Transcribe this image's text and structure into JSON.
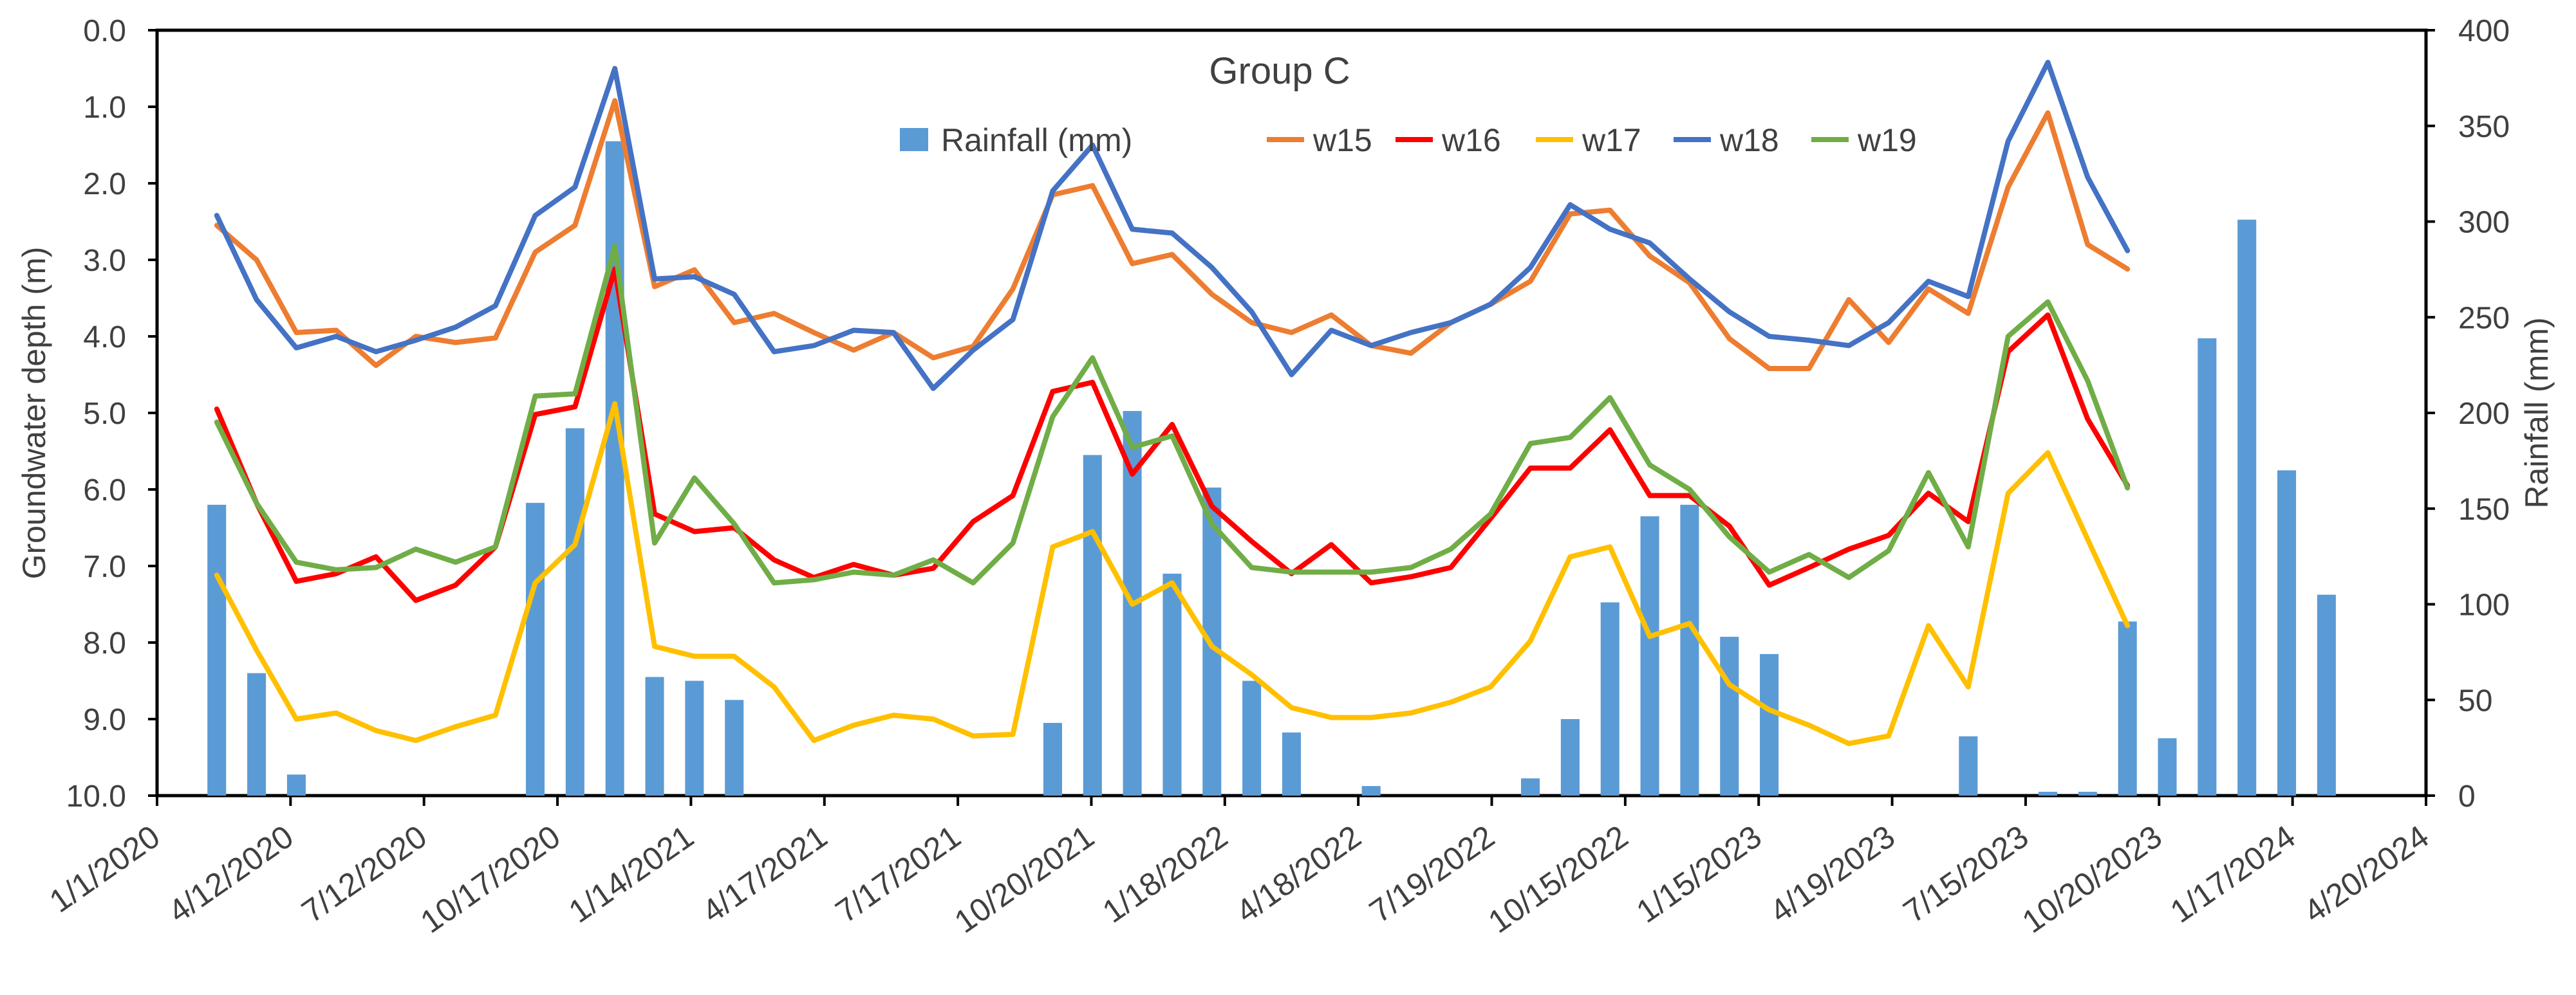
{
  "chart_data": {
    "type": "line",
    "title": "Group C",
    "ylabel_left": "Groundwater depth (m)",
    "ylabel_right": "Rainfall (mm)",
    "xlabel": "",
    "ylim_left": [
      10.0,
      0.0
    ],
    "ylim_right": [
      0,
      400
    ],
    "y_ticks_left": [
      "0.0",
      "1.0",
      "2.0",
      "3.0",
      "4.0",
      "5.0",
      "6.0",
      "7.0",
      "8.0",
      "9.0",
      "10.0"
    ],
    "y_ticks_right": [
      "0",
      "50",
      "100",
      "150",
      "200",
      "250",
      "300",
      "350",
      "400"
    ],
    "x_ticks": [
      "1/1/2020",
      "4/12/2020",
      "7/12/2020",
      "10/17/2020",
      "1/14/2021",
      "4/17/2021",
      "7/17/2021",
      "10/20/2021",
      "1/18/2022",
      "4/18/2022",
      "7/19/2022",
      "10/15/2022",
      "1/15/2023",
      "4/19/2023",
      "7/15/2023",
      "10/20/2023",
      "1/17/2024",
      "4/20/2024"
    ],
    "legend": [
      "Rainfall (mm)",
      "w15",
      "w16",
      "w17",
      "w18",
      "w19"
    ],
    "colors": {
      "rainfall": "#5B9BD5",
      "w15": "#ED7D31",
      "w16": "#FF0000",
      "w17": "#FFC000",
      "w18": "#4472C4",
      "w19": "#70AD47"
    },
    "rainfall_index": [
      1,
      2,
      3,
      9,
      10,
      11,
      12,
      13,
      14,
      22,
      23,
      24,
      25,
      26,
      27,
      28,
      30,
      34,
      35,
      36,
      37,
      38,
      39,
      40,
      45,
      47,
      48,
      49,
      50,
      51,
      52,
      53,
      54
    ],
    "rainfall_values": [
      152,
      64,
      11,
      153,
      192,
      342,
      62,
      60,
      50,
      38,
      178,
      201,
      116,
      161,
      60,
      33,
      5,
      9,
      40,
      101,
      146,
      152,
      83,
      74,
      31,
      2,
      2,
      91,
      30,
      239,
      301,
      170,
      105
    ],
    "series": [
      {
        "name": "w15",
        "values": [
          2.55,
          3.0,
          3.95,
          3.92,
          4.38,
          4.0,
          4.08,
          4.02,
          2.9,
          2.55,
          0.92,
          3.35,
          3.13,
          3.82,
          3.7,
          3.95,
          4.18,
          3.95,
          4.28,
          4.13,
          3.38,
          2.15,
          2.03,
          3.05,
          2.93,
          3.45,
          3.82,
          3.95,
          3.72,
          4.12,
          4.22,
          3.82,
          3.58,
          3.28,
          2.4,
          2.35,
          2.95,
          3.3,
          4.03,
          4.42,
          4.42,
          3.52,
          4.08,
          3.38,
          3.7,
          2.05,
          1.08,
          2.8,
          3.12
        ]
      },
      {
        "name": "w16",
        "values": [
          4.95,
          6.18,
          7.2,
          7.1,
          6.88,
          7.45,
          7.25,
          6.75,
          5.02,
          4.92,
          3.12,
          6.32,
          6.55,
          6.5,
          6.92,
          7.15,
          6.98,
          7.12,
          7.03,
          6.42,
          6.08,
          4.72,
          4.6,
          5.8,
          5.15,
          6.22,
          6.68,
          7.1,
          6.72,
          7.22,
          7.14,
          7.02,
          6.38,
          5.72,
          5.72,
          5.22,
          6.08,
          6.08,
          6.48,
          7.25,
          7.02,
          6.78,
          6.6,
          6.05,
          6.42,
          4.2,
          3.72,
          5.08,
          5.95
        ]
      },
      {
        "name": "w17",
        "values": [
          7.12,
          8.1,
          9.0,
          8.92,
          9.15,
          9.28,
          9.1,
          8.95,
          7.22,
          6.72,
          4.88,
          8.05,
          8.18,
          8.18,
          8.58,
          9.28,
          9.08,
          8.95,
          9.0,
          9.22,
          9.2,
          6.75,
          6.55,
          7.5,
          7.22,
          8.05,
          8.42,
          8.85,
          8.98,
          8.98,
          8.92,
          8.78,
          8.58,
          7.98,
          6.88,
          6.75,
          7.92,
          7.75,
          8.55,
          8.88,
          9.08,
          9.32,
          9.22,
          7.78,
          8.58,
          6.05,
          5.52,
          6.65,
          7.78
        ]
      },
      {
        "name": "w18",
        "values": [
          2.42,
          3.52,
          4.15,
          4.0,
          4.2,
          4.05,
          3.88,
          3.6,
          2.42,
          2.05,
          0.5,
          3.25,
          3.22,
          3.45,
          4.2,
          4.12,
          3.92,
          3.95,
          4.68,
          4.18,
          3.78,
          2.1,
          1.5,
          2.6,
          2.65,
          3.1,
          3.68,
          4.5,
          3.92,
          4.12,
          3.95,
          3.82,
          3.58,
          3.1,
          2.28,
          2.6,
          2.78,
          3.25,
          3.68,
          4.0,
          4.05,
          4.12,
          3.82,
          3.28,
          3.48,
          1.45,
          0.42,
          1.92,
          2.88
        ]
      },
      {
        "name": "w19",
        "values": [
          5.12,
          6.18,
          6.95,
          7.05,
          7.02,
          6.78,
          6.95,
          6.75,
          4.78,
          4.75,
          2.82,
          6.7,
          5.85,
          6.45,
          7.22,
          7.18,
          7.08,
          7.12,
          6.92,
          7.22,
          6.7,
          5.05,
          4.28,
          5.45,
          5.3,
          6.45,
          7.02,
          7.08,
          7.08,
          7.08,
          7.02,
          6.78,
          6.32,
          5.4,
          5.32,
          4.8,
          5.68,
          6.0,
          6.62,
          7.08,
          6.85,
          7.15,
          6.8,
          5.78,
          6.75,
          4.0,
          3.55,
          4.58,
          5.98
        ]
      }
    ]
  }
}
